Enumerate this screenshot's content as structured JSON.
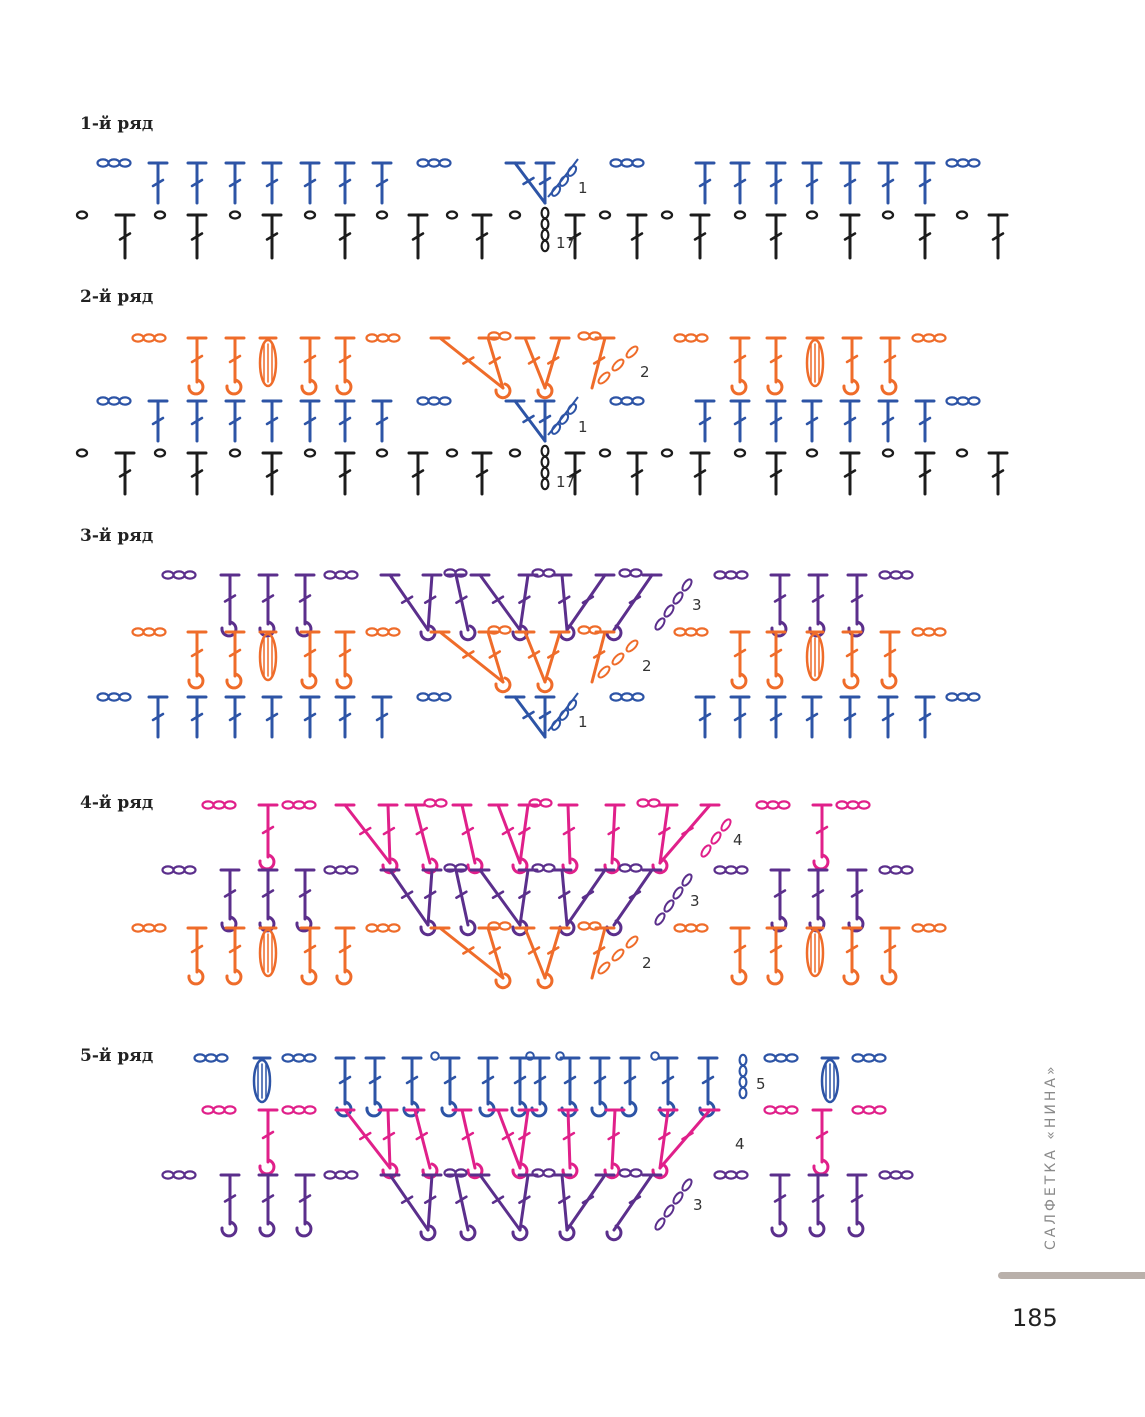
{
  "rows": [
    {
      "label": "1-й ряд",
      "markers": [
        "1",
        "17"
      ]
    },
    {
      "label": "2-й ряд",
      "markers": [
        "2",
        "1",
        "17"
      ]
    },
    {
      "label": "3-й ряд",
      "markers": [
        "3",
        "2",
        "1"
      ]
    },
    {
      "label": "4-й ряд",
      "markers": [
        "4",
        "3",
        "2"
      ]
    },
    {
      "label": "5-й ряд",
      "markers": [
        "5",
        "4",
        "3"
      ]
    }
  ],
  "side_title": "САЛФЕТКА «НИНА»",
  "page_number": "185",
  "colors": {
    "base": "#1c1c1c",
    "row1": "#2d54a6",
    "row2": "#ef6c2a",
    "row3": "#5b2f8c",
    "row4": "#e0208a",
    "row5": "#2d54a6",
    "accent_bar": "#b9b0aa"
  }
}
